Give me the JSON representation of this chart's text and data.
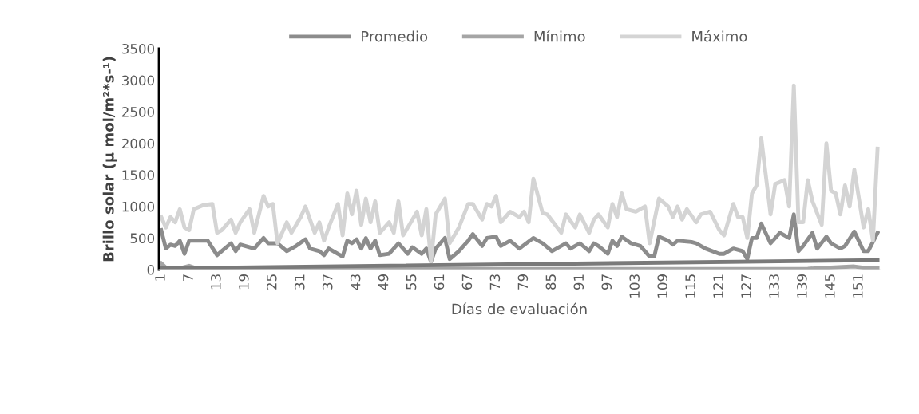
{
  "chart_data": {
    "type": "line",
    "xlabel": "Días de evaluación",
    "ylabel": "Brillo solar (µ mol/m²*s-¹)",
    "xlim": [
      0.5,
      155.5
    ],
    "xticks": [
      1,
      7,
      13,
      19,
      25,
      31,
      37,
      43,
      49,
      55,
      61,
      67,
      73,
      79,
      85,
      91,
      97,
      103,
      109,
      115,
      121,
      127,
      133,
      139,
      145,
      151
    ],
    "ylim": [
      0,
      3500
    ],
    "yticks": [
      0,
      500,
      1000,
      1500,
      2000,
      2500,
      3000,
      3500
    ],
    "grid": false,
    "legend": "top",
    "marker": "none",
    "line_style": "solid",
    "series": [
      {
        "name": "Promedio",
        "color": "#8c8c8c",
        "x": [
          1,
          2,
          3,
          4,
          5,
          6,
          7,
          11,
          13,
          14,
          16,
          17,
          18,
          21,
          23,
          24,
          26,
          28,
          30,
          32,
          33,
          35,
          36,
          37,
          40,
          41,
          42,
          43,
          44,
          45,
          46,
          47,
          48,
          50,
          52,
          54,
          55,
          57,
          58,
          59,
          60,
          62,
          63,
          65,
          67,
          68,
          70,
          71,
          73,
          74,
          76,
          78,
          81,
          83,
          85,
          88,
          89,
          91,
          93,
          94,
          95,
          97,
          98,
          99,
          100,
          102,
          104,
          106,
          107,
          108,
          110,
          111,
          112,
          115,
          116,
          118,
          121,
          122,
          124,
          126,
          127,
          128,
          129,
          130,
          132,
          134,
          136,
          137,
          138,
          139,
          141,
          142,
          144,
          145,
          147,
          148,
          150,
          152,
          153,
          155
        ],
        "values": [
          625,
          333,
          396,
          375,
          458,
          250,
          458,
          458,
          229,
          292,
          417,
          292,
          396,
          333,
          500,
          417,
          417,
          292,
          375,
          479,
          333,
          292,
          229,
          333,
          208,
          458,
          417,
          479,
          333,
          500,
          333,
          458,
          229,
          250,
          417,
          250,
          354,
          250,
          333,
          125,
          333,
          500,
          167,
          292,
          458,
          563,
          375,
          500,
          521,
          375,
          458,
          333,
          500,
          417,
          292,
          417,
          333,
          417,
          292,
          417,
          375,
          250,
          458,
          375,
          521,
          417,
          375,
          208,
          208,
          521,
          458,
          396,
          458,
          438,
          417,
          333,
          250,
          250,
          333,
          292,
          167,
          500,
          500,
          729,
          417,
          583,
          500,
          875,
          292,
          375,
          583,
          333,
          521,
          417,
          333,
          375,
          604,
          292,
          292,
          583
        ]
      },
      {
        "name": "Mínimo",
        "color": "#a5a5a5",
        "x": [
          1,
          2,
          5,
          7,
          9,
          20,
          40,
          60,
          80,
          100,
          120,
          140,
          150,
          153,
          155
        ],
        "values": [
          100,
          30,
          20,
          60,
          10,
          10,
          10,
          15,
          10,
          10,
          10,
          15,
          50,
          20,
          20
        ]
      },
      {
        "name": "Máximo",
        "color": "#d4d4d4",
        "x": [
          1,
          2,
          3,
          4,
          5,
          6,
          7,
          8,
          10,
          12,
          13,
          14,
          16,
          17,
          18,
          20,
          21,
          23,
          24,
          25,
          26,
          28,
          29,
          31,
          32,
          34,
          35,
          36,
          37,
          39,
          40,
          41,
          42,
          43,
          44,
          45,
          46,
          47,
          48,
          50,
          51,
          52,
          53,
          56,
          57,
          58,
          59,
          60,
          62,
          63,
          65,
          67,
          68,
          70,
          71,
          72,
          73,
          74,
          76,
          78,
          79,
          80,
          81,
          83,
          84,
          87,
          88,
          90,
          91,
          93,
          94,
          95,
          97,
          98,
          99,
          100,
          101,
          103,
          105,
          106,
          108,
          110,
          111,
          112,
          113,
          114,
          116,
          117,
          119,
          121,
          122,
          124,
          125,
          126,
          127,
          128,
          129,
          130,
          132,
          133,
          135,
          136,
          137,
          138,
          139,
          140,
          141,
          143,
          144,
          145,
          146,
          147,
          148,
          149,
          150,
          152,
          153,
          154,
          155
        ],
        "values": [
          833,
          667,
          833,
          750,
          958,
          667,
          625,
          958,
          1020,
          1040,
          583,
          625,
          792,
          583,
          750,
          958,
          583,
          1167,
          1000,
          1040,
          417,
          750,
          583,
          833,
          1000,
          583,
          750,
          458,
          667,
          1040,
          542,
          1208,
          875,
          1250,
          708,
          1125,
          750,
          1083,
          583,
          750,
          583,
          1083,
          542,
          917,
          542,
          958,
          125,
          875,
          1125,
          417,
          667,
          1040,
          1040,
          792,
          1040,
          1000,
          1167,
          750,
          917,
          833,
          917,
          750,
          1438,
          896,
          875,
          583,
          875,
          667,
          875,
          583,
          792,
          875,
          667,
          1040,
          833,
          1208,
          958,
          917,
          1000,
          417,
          1125,
          1000,
          833,
          1000,
          792,
          958,
          750,
          875,
          917,
          625,
          542,
          1040,
          833,
          833,
          500,
          1208,
          1333,
          2083,
          875,
          1354,
          1417,
          1000,
          2917,
          750,
          750,
          1417,
          1083,
          708,
          2000,
          1250,
          1208,
          875,
          1333,
          1000,
          1583,
          667,
          958,
          458,
          1917
        ]
      },
      {
        "color": "#7a7a7a",
        "x": [
          1,
          155
        ],
        "values": [
          20,
          150
        ]
      }
    ]
  }
}
